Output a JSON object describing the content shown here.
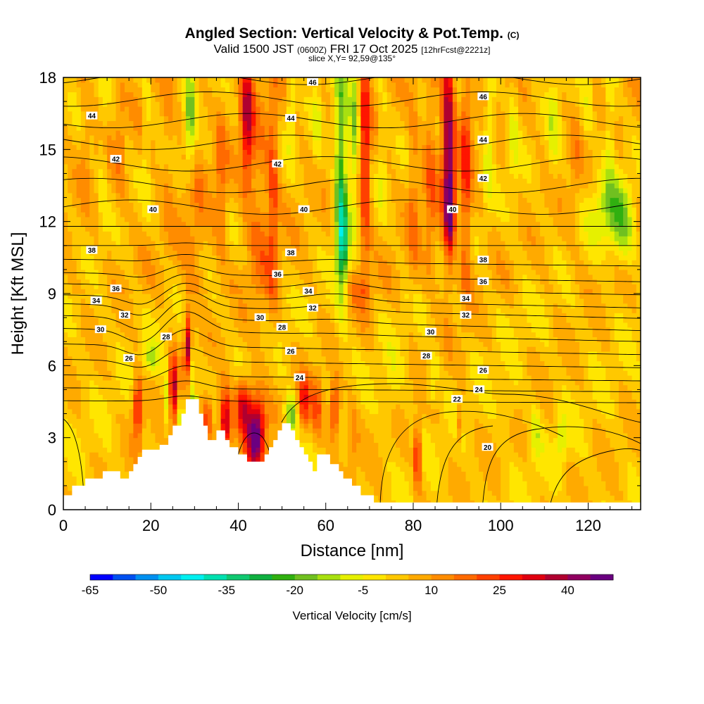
{
  "header": {
    "title": "Angled Section: Vertical Velocity & Pot.Temp.",
    "title_tag": "(C)",
    "valid_prefix": "Valid 1500 JST",
    "valid_zulu": "(0600Z)",
    "valid_date": "FRI 17 Oct 2025",
    "forecast": "[12hrFcst@2221z]",
    "slice": "slice X,Y= 92,59@135°"
  },
  "chart_data": {
    "type": "heatmap",
    "title": "Angled Section: Vertical Velocity & Pot.Temp.",
    "xlabel": "Distance [nm]",
    "ylabel": "Height [Kft MSL]",
    "xlim": [
      0,
      132
    ],
    "ylim": [
      0,
      18
    ],
    "xticks": [
      0,
      20,
      40,
      60,
      80,
      100,
      120
    ],
    "yticks": [
      0,
      3,
      6,
      9,
      12,
      15,
      18
    ],
    "colorbar": {
      "label": "Vertical Velocity [cm/s]",
      "min": -65,
      "step": 5,
      "colors": [
        "#0000ff",
        "#0050f0",
        "#0090f0",
        "#00c8f0",
        "#00f0f0",
        "#00e0b0",
        "#10c870",
        "#10b040",
        "#30b010",
        "#70c020",
        "#a8e010",
        "#e6f000",
        "#ffe600",
        "#ffc800",
        "#ffaa00",
        "#ff8c00",
        "#ff6a00",
        "#ff4000",
        "#ff1500",
        "#e00010",
        "#b00030",
        "#900060",
        "#6a0080"
      ],
      "tick_labels": [
        "-65",
        "-50",
        "-35",
        "-20",
        "-5",
        "10",
        "25",
        "40"
      ]
    },
    "theta_contour_levels": [
      20,
      22,
      24,
      26,
      28,
      30,
      32,
      34,
      36,
      38,
      40,
      42,
      44,
      46
    ],
    "theta_labels": [
      {
        "text": "44",
        "x": 6.5,
        "y": 16.4
      },
      {
        "text": "44",
        "x": 52,
        "y": 16.3
      },
      {
        "text": "44",
        "x": 96,
        "y": 15.4
      },
      {
        "text": "46",
        "x": 57,
        "y": 17.8
      },
      {
        "text": "46",
        "x": 96,
        "y": 17.2
      },
      {
        "text": "42",
        "x": 12,
        "y": 14.6
      },
      {
        "text": "42",
        "x": 49,
        "y": 14.4
      },
      {
        "text": "42",
        "x": 96,
        "y": 13.8
      },
      {
        "text": "40",
        "x": 20.5,
        "y": 12.5
      },
      {
        "text": "40",
        "x": 55,
        "y": 12.5
      },
      {
        "text": "40",
        "x": 89,
        "y": 12.5
      },
      {
        "text": "38",
        "x": 6.5,
        "y": 10.8
      },
      {
        "text": "38",
        "x": 52,
        "y": 10.7
      },
      {
        "text": "38",
        "x": 96,
        "y": 10.4
      },
      {
        "text": "36",
        "x": 12,
        "y": 9.2
      },
      {
        "text": "36",
        "x": 49,
        "y": 9.8
      },
      {
        "text": "36",
        "x": 96,
        "y": 9.5
      },
      {
        "text": "34",
        "x": 7.5,
        "y": 8.7
      },
      {
        "text": "34",
        "x": 56,
        "y": 9.1
      },
      {
        "text": "34",
        "x": 92,
        "y": 8.8
      },
      {
        "text": "32",
        "x": 14,
        "y": 8.1
      },
      {
        "text": "32",
        "x": 57,
        "y": 8.4
      },
      {
        "text": "32",
        "x": 92,
        "y": 8.1
      },
      {
        "text": "30",
        "x": 8.5,
        "y": 7.5
      },
      {
        "text": "30",
        "x": 45,
        "y": 8.0
      },
      {
        "text": "30",
        "x": 84,
        "y": 7.4
      },
      {
        "text": "28",
        "x": 23.5,
        "y": 7.2
      },
      {
        "text": "28",
        "x": 50,
        "y": 7.6
      },
      {
        "text": "28",
        "x": 83,
        "y": 6.4
      },
      {
        "text": "26",
        "x": 15,
        "y": 6.3
      },
      {
        "text": "26",
        "x": 52,
        "y": 6.6
      },
      {
        "text": "26",
        "x": 96,
        "y": 5.8
      },
      {
        "text": "24",
        "x": 54,
        "y": 5.5
      },
      {
        "text": "24",
        "x": 95,
        "y": 5.0
      },
      {
        "text": "22",
        "x": 90,
        "y": 4.6
      },
      {
        "text": "20",
        "x": 97,
        "y": 2.6
      }
    ],
    "terrain_profile": [
      [
        0,
        0.6
      ],
      [
        2,
        0.6
      ],
      [
        2,
        1.0
      ],
      [
        5,
        1.0
      ],
      [
        5,
        1.3
      ],
      [
        9,
        1.3
      ],
      [
        9,
        1.6
      ],
      [
        13,
        1.6
      ],
      [
        13,
        1.3
      ],
      [
        15,
        1.3
      ],
      [
        15,
        1.6
      ],
      [
        16,
        1.6
      ],
      [
        16,
        1.9
      ],
      [
        17,
        1.9
      ],
      [
        17,
        2.2
      ],
      [
        18,
        2.2
      ],
      [
        18,
        2.5
      ],
      [
        22,
        2.5
      ],
      [
        22,
        2.7
      ],
      [
        24,
        2.7
      ],
      [
        24,
        3.1
      ],
      [
        25,
        3.1
      ],
      [
        25,
        3.5
      ],
      [
        27,
        3.5
      ],
      [
        27,
        4.0
      ],
      [
        28,
        4.0
      ],
      [
        28,
        4.6
      ],
      [
        31,
        4.6
      ],
      [
        31,
        4.0
      ],
      [
        32,
        4.0
      ],
      [
        32,
        3.5
      ],
      [
        33,
        3.5
      ],
      [
        33,
        2.9
      ],
      [
        35,
        2.9
      ],
      [
        35,
        3.3
      ],
      [
        37,
        3.3
      ],
      [
        37,
        2.9
      ],
      [
        38,
        2.9
      ],
      [
        38,
        2.6
      ],
      [
        40,
        2.6
      ],
      [
        40,
        2.3
      ],
      [
        42,
        2.3
      ],
      [
        42,
        2.0
      ],
      [
        46,
        2.0
      ],
      [
        46,
        2.3
      ],
      [
        47,
        2.3
      ],
      [
        47,
        2.6
      ],
      [
        48,
        2.6
      ],
      [
        48,
        2.9
      ],
      [
        49,
        2.9
      ],
      [
        49,
        3.3
      ],
      [
        50,
        3.3
      ],
      [
        50,
        3.6
      ],
      [
        52,
        3.6
      ],
      [
        52,
        3.3
      ],
      [
        53,
        3.3
      ],
      [
        53,
        2.9
      ],
      [
        54,
        2.9
      ],
      [
        54,
        2.6
      ],
      [
        55,
        2.6
      ],
      [
        55,
        2.3
      ],
      [
        56,
        2.3
      ],
      [
        56,
        2.0
      ],
      [
        57,
        2.0
      ],
      [
        57,
        1.6
      ],
      [
        58,
        1.6
      ],
      [
        58,
        2.3
      ],
      [
        61,
        2.3
      ],
      [
        61,
        1.9
      ],
      [
        63,
        1.9
      ],
      [
        63,
        1.6
      ],
      [
        64,
        1.6
      ],
      [
        64,
        1.3
      ],
      [
        66,
        1.3
      ],
      [
        66,
        1.0
      ],
      [
        68,
        1.0
      ],
      [
        68,
        0.6
      ],
      [
        71,
        0.6
      ],
      [
        71,
        0.3
      ],
      [
        132,
        0.3
      ]
    ]
  }
}
